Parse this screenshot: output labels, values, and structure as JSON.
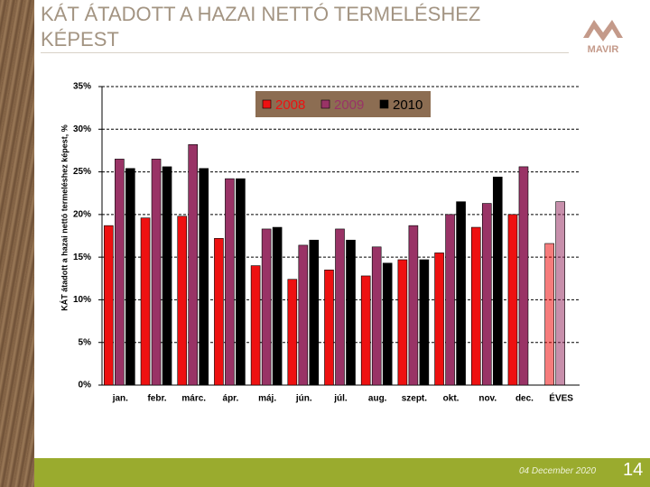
{
  "slide": {
    "title": "KÁT ÁTADOTT A HAZAI NETTÓ TERMELÉSHEZ KÉPEST",
    "logo": "MAVIR",
    "date": "04 December 2020",
    "page": "14"
  },
  "chart_data": {
    "type": "bar",
    "y_label": "KÁT átadott a hazai nettó termeléshez képest, %",
    "categories": [
      "jan.",
      "febr.",
      "márc.",
      "ápr.",
      "máj.",
      "jún.",
      "júl.",
      "aug.",
      "szept.",
      "okt.",
      "nov.",
      "dec.",
      "ÉVES"
    ],
    "series": [
      {
        "name": "2008",
        "color": "#ee1111",
        "values": [
          18.7,
          19.6,
          19.8,
          17.2,
          14.0,
          12.4,
          13.5,
          12.8,
          14.7,
          15.5,
          18.5,
          20.0,
          16.6
        ]
      },
      {
        "name": "2009",
        "color": "#993366",
        "values": [
          26.5,
          26.5,
          28.2,
          24.2,
          18.3,
          16.4,
          18.3,
          16.2,
          18.7,
          20.0,
          21.3,
          25.6,
          21.5
        ]
      },
      {
        "name": "2010",
        "color": "#000000",
        "values": [
          25.4,
          25.6,
          25.4,
          24.2,
          18.5,
          17.0,
          17.0,
          14.3,
          14.7,
          21.5,
          24.4,
          null,
          null
        ]
      }
    ],
    "ylim": [
      0,
      35
    ],
    "yticks": [
      {
        "value": 0,
        "label": "0%"
      },
      {
        "value": 5,
        "label": "5%"
      },
      {
        "value": 10,
        "label": "10%"
      },
      {
        "value": 15,
        "label": "15%"
      },
      {
        "value": 20,
        "label": "20%"
      },
      {
        "value": 25,
        "label": "25%"
      },
      {
        "value": 30,
        "label": "30%"
      },
      {
        "value": 35,
        "label": "35%"
      }
    ],
    "grid": true,
    "legend": "top"
  }
}
